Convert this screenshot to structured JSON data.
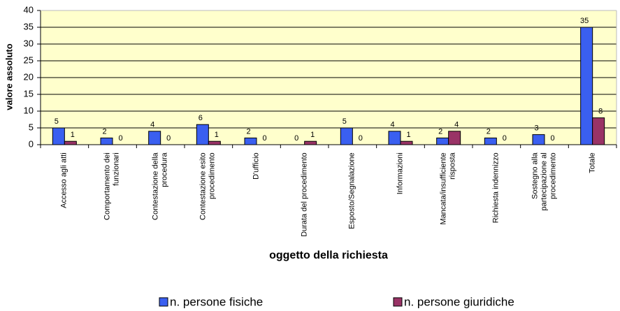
{
  "chart_data": {
    "type": "bar",
    "y_label": "valore assoluto",
    "x_label": "oggetto della richiesta",
    "categories": [
      "Accesso agli atti",
      "Comportamento dei funzionari",
      "Contestazione della procedura",
      "Contestazione esito procedimento",
      "D'ufficio",
      "Durata del procedimento",
      "Esposto/Segnalazione",
      "Informazioni",
      "Mancata/insufficiente risposta",
      "Richiesta indennizzo",
      "Sostegno alla partecipazione al procedimento",
      "Totale"
    ],
    "series": [
      {
        "name": "n. persone fisiche",
        "color": "#3a5ff0",
        "values": [
          5,
          2,
          4,
          6,
          2,
          0,
          5,
          4,
          2,
          2,
          3,
          35
        ]
      },
      {
        "name": "n. persone giuridiche",
        "color": "#993366",
        "values": [
          1,
          0,
          0,
          1,
          0,
          1,
          0,
          1,
          4,
          0,
          0,
          8
        ]
      }
    ],
    "ylim": [
      0,
      40
    ],
    "yticks": [
      0,
      5,
      10,
      15,
      20,
      25,
      30,
      35,
      40
    ],
    "grid": true,
    "legend": "bottom"
  }
}
